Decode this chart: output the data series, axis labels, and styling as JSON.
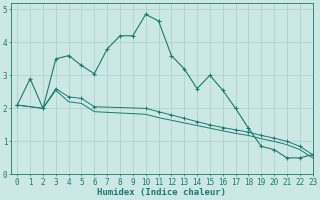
{
  "xlabel": "Humidex (Indice chaleur)",
  "bg_color": "#cce8e5",
  "grid_color": "#aacfcc",
  "line_color": "#1a7a72",
  "xlim": [
    -0.5,
    23
  ],
  "ylim": [
    0,
    5.2
  ],
  "xticks": [
    0,
    1,
    2,
    3,
    4,
    5,
    6,
    7,
    8,
    9,
    10,
    11,
    12,
    13,
    14,
    15,
    16,
    17,
    18,
    19,
    20,
    21,
    22,
    23
  ],
  "yticks": [
    0,
    1,
    2,
    3,
    4,
    5
  ],
  "line1_x": [
    0,
    1,
    2,
    3,
    4,
    5,
    6,
    7,
    8,
    9,
    10,
    11,
    12,
    13,
    14,
    15,
    16,
    17,
    18,
    19,
    20,
    21,
    22,
    23
  ],
  "line1_y": [
    2.1,
    2.9,
    2.0,
    3.5,
    3.6,
    3.3,
    3.05,
    3.8,
    4.2,
    4.2,
    4.85,
    4.65,
    3.6,
    3.2,
    2.6,
    3.0,
    2.55,
    2.0,
    1.4,
    0.85,
    0.75,
    0.5,
    0.5,
    0.6
  ],
  "line2_x": [
    0,
    2,
    3,
    4,
    5,
    6,
    10,
    11,
    12,
    13,
    14,
    15,
    16,
    17,
    18,
    19,
    20,
    21,
    22,
    23
  ],
  "line2_y": [
    2.1,
    2.0,
    2.6,
    2.35,
    2.3,
    2.05,
    2.0,
    1.9,
    1.8,
    1.7,
    1.6,
    1.5,
    1.42,
    1.35,
    1.28,
    1.18,
    1.1,
    1.0,
    0.85,
    0.6
  ],
  "line3_x": [
    0,
    2,
    3,
    4,
    5,
    6,
    10,
    11,
    12,
    13,
    14,
    15,
    16,
    17,
    18,
    19,
    20,
    21,
    22,
    23
  ],
  "line3_y": [
    2.1,
    2.0,
    2.55,
    2.2,
    2.15,
    1.9,
    1.82,
    1.72,
    1.64,
    1.56,
    1.48,
    1.4,
    1.32,
    1.24,
    1.18,
    1.08,
    1.0,
    0.9,
    0.75,
    0.5
  ],
  "xlabel_fontsize": 6.5,
  "tick_fontsize": 5.5
}
